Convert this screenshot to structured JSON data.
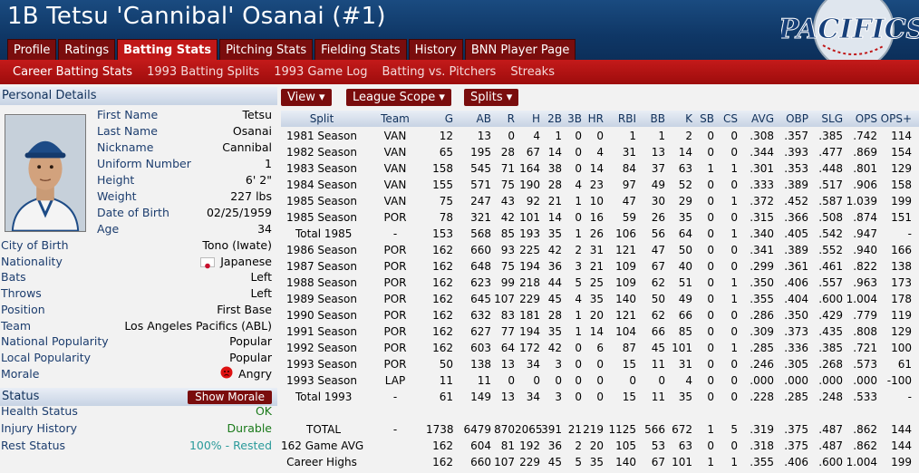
{
  "header": {
    "title": "1B Tetsu 'Cannibal' Osanai (#1)",
    "logo_text": "PACIFICS"
  },
  "tabs": [
    "Profile",
    "Ratings",
    "Batting Stats",
    "Pitching Stats",
    "Fielding Stats",
    "History",
    "BNN Player Page"
  ],
  "active_tab": "Batting Stats",
  "subtabs": [
    "Career Batting Stats",
    "1993 Batting Splits",
    "1993 Game Log",
    "Batting vs. Pitchers",
    "Streaks"
  ],
  "active_subtab": "Career Batting Stats",
  "personal": {
    "section_title": "Personal Details",
    "fields": [
      {
        "label": "First Name",
        "value": "Tetsu"
      },
      {
        "label": "Last Name",
        "value": "Osanai"
      },
      {
        "label": "Nickname",
        "value": "Cannibal"
      },
      {
        "label": "Uniform Number",
        "value": "1"
      },
      {
        "label": "Height",
        "value": "6' 2\""
      },
      {
        "label": "Weight",
        "value": "227 lbs"
      },
      {
        "label": "Date of Birth",
        "value": "02/25/1959"
      },
      {
        "label": "Age",
        "value": "34"
      }
    ],
    "fields2": [
      {
        "label": "City of Birth",
        "value": "Tono (Iwate)"
      },
      {
        "label": "Nationality",
        "value": "Japanese",
        "icon": "japan-flag-icon"
      },
      {
        "label": "Bats",
        "value": "Left"
      },
      {
        "label": "Throws",
        "value": "Left"
      },
      {
        "label": "Position",
        "value": "First Base"
      },
      {
        "label": "Team",
        "value": "Los Angeles Pacifics (ABL)"
      },
      {
        "label": "National Popularity",
        "value": "Popular"
      },
      {
        "label": "Local Popularity",
        "value": "Popular"
      },
      {
        "label": "Morale",
        "value": "Angry",
        "icon": "angry-face-icon"
      }
    ]
  },
  "status": {
    "section_title": "Status",
    "button": "Show Morale",
    "fields": [
      {
        "label": "Health Status",
        "value": "OK",
        "color": "#1a7a1a"
      },
      {
        "label": "Injury History",
        "value": "Durable",
        "color": "#1a7a1a"
      },
      {
        "label": "Rest Status",
        "value": "100% - Rested",
        "color": "#2a9a9a"
      }
    ]
  },
  "controls": {
    "view": "View",
    "league_scope": "League Scope",
    "splits": "Splits"
  },
  "columns": [
    "Split",
    "Team",
    "G",
    "AB",
    "R",
    "H",
    "2B",
    "3B",
    "HR",
    "RBI",
    "BB",
    "K",
    "SB",
    "CS",
    "AVG",
    "OBP",
    "SLG",
    "OPS",
    "OPS+"
  ],
  "rows": [
    [
      "1981 Season",
      "VAN",
      "12",
      "13",
      "0",
      "4",
      "1",
      "0",
      "0",
      "1",
      "1",
      "2",
      "0",
      "0",
      ".308",
      ".357",
      ".385",
      ".742",
      "114"
    ],
    [
      "1982 Season",
      "VAN",
      "65",
      "195",
      "28",
      "67",
      "14",
      "0",
      "4",
      "31",
      "13",
      "14",
      "0",
      "0",
      ".344",
      ".393",
      ".477",
      ".869",
      "154"
    ],
    [
      "1983 Season",
      "VAN",
      "158",
      "545",
      "71",
      "164",
      "38",
      "0",
      "14",
      "84",
      "37",
      "63",
      "1",
      "1",
      ".301",
      ".353",
      ".448",
      ".801",
      "129"
    ],
    [
      "1984 Season",
      "VAN",
      "155",
      "571",
      "75",
      "190",
      "28",
      "4",
      "23",
      "97",
      "49",
      "52",
      "0",
      "0",
      ".333",
      ".389",
      ".517",
      ".906",
      "158"
    ],
    [
      "1985 Season",
      "VAN",
      "75",
      "247",
      "43",
      "92",
      "21",
      "1",
      "10",
      "47",
      "30",
      "29",
      "0",
      "1",
      ".372",
      ".452",
      ".587",
      "1.039",
      "199"
    ],
    [
      "1985 Season",
      "POR",
      "78",
      "321",
      "42",
      "101",
      "14",
      "0",
      "16",
      "59",
      "26",
      "35",
      "0",
      "0",
      ".315",
      ".366",
      ".508",
      ".874",
      "151"
    ],
    [
      "Total 1985",
      "-",
      "153",
      "568",
      "85",
      "193",
      "35",
      "1",
      "26",
      "106",
      "56",
      "64",
      "0",
      "1",
      ".340",
      ".405",
      ".542",
      ".947",
      "-"
    ],
    [
      "1986 Season",
      "POR",
      "162",
      "660",
      "93",
      "225",
      "42",
      "2",
      "31",
      "121",
      "47",
      "50",
      "0",
      "0",
      ".341",
      ".389",
      ".552",
      ".940",
      "166"
    ],
    [
      "1987 Season",
      "POR",
      "162",
      "648",
      "75",
      "194",
      "36",
      "3",
      "21",
      "109",
      "67",
      "40",
      "0",
      "0",
      ".299",
      ".361",
      ".461",
      ".822",
      "138"
    ],
    [
      "1988 Season",
      "POR",
      "162",
      "623",
      "99",
      "218",
      "44",
      "5",
      "25",
      "109",
      "62",
      "51",
      "0",
      "1",
      ".350",
      ".406",
      ".557",
      ".963",
      "173"
    ],
    [
      "1989 Season",
      "POR",
      "162",
      "645",
      "107",
      "229",
      "45",
      "4",
      "35",
      "140",
      "50",
      "49",
      "0",
      "1",
      ".355",
      ".404",
      ".600",
      "1.004",
      "178"
    ],
    [
      "1990 Season",
      "POR",
      "162",
      "632",
      "83",
      "181",
      "28",
      "1",
      "20",
      "121",
      "62",
      "66",
      "0",
      "0",
      ".286",
      ".350",
      ".429",
      ".779",
      "119"
    ],
    [
      "1991 Season",
      "POR",
      "162",
      "627",
      "77",
      "194",
      "35",
      "1",
      "14",
      "104",
      "66",
      "85",
      "0",
      "0",
      ".309",
      ".373",
      ".435",
      ".808",
      "129"
    ],
    [
      "1992 Season",
      "POR",
      "162",
      "603",
      "64",
      "172",
      "42",
      "0",
      "6",
      "87",
      "45",
      "101",
      "0",
      "1",
      ".285",
      ".336",
      ".385",
      ".721",
      "100"
    ],
    [
      "1993 Season",
      "POR",
      "50",
      "138",
      "13",
      "34",
      "3",
      "0",
      "0",
      "15",
      "11",
      "31",
      "0",
      "0",
      ".246",
      ".305",
      ".268",
      ".573",
      "61"
    ],
    [
      "1993 Season",
      "LAP",
      "11",
      "11",
      "0",
      "0",
      "0",
      "0",
      "0",
      "0",
      "0",
      "4",
      "0",
      "0",
      ".000",
      ".000",
      ".000",
      ".000",
      "-100"
    ],
    [
      "Total 1993",
      "-",
      "61",
      "149",
      "13",
      "34",
      "3",
      "0",
      "0",
      "15",
      "11",
      "35",
      "0",
      "0",
      ".228",
      ".285",
      ".248",
      ".533",
      "-"
    ]
  ],
  "totals": [
    [
      "TOTAL",
      "-",
      "1738",
      "6479",
      "870",
      "2065",
      "391",
      "21",
      "219",
      "1125",
      "566",
      "672",
      "1",
      "5",
      ".319",
      ".375",
      ".487",
      ".862",
      "144"
    ],
    [
      "162 Game AVG",
      "",
      "162",
      "604",
      "81",
      "192",
      "36",
      "2",
      "20",
      "105",
      "53",
      "63",
      "0",
      "0",
      ".318",
      ".375",
      ".487",
      ".862",
      "144"
    ],
    [
      "Career Highs",
      "",
      "162",
      "660",
      "107",
      "229",
      "45",
      "5",
      "35",
      "140",
      "67",
      "101",
      "1",
      "1",
      ".355",
      ".406",
      ".600",
      "1.004",
      "199"
    ]
  ]
}
